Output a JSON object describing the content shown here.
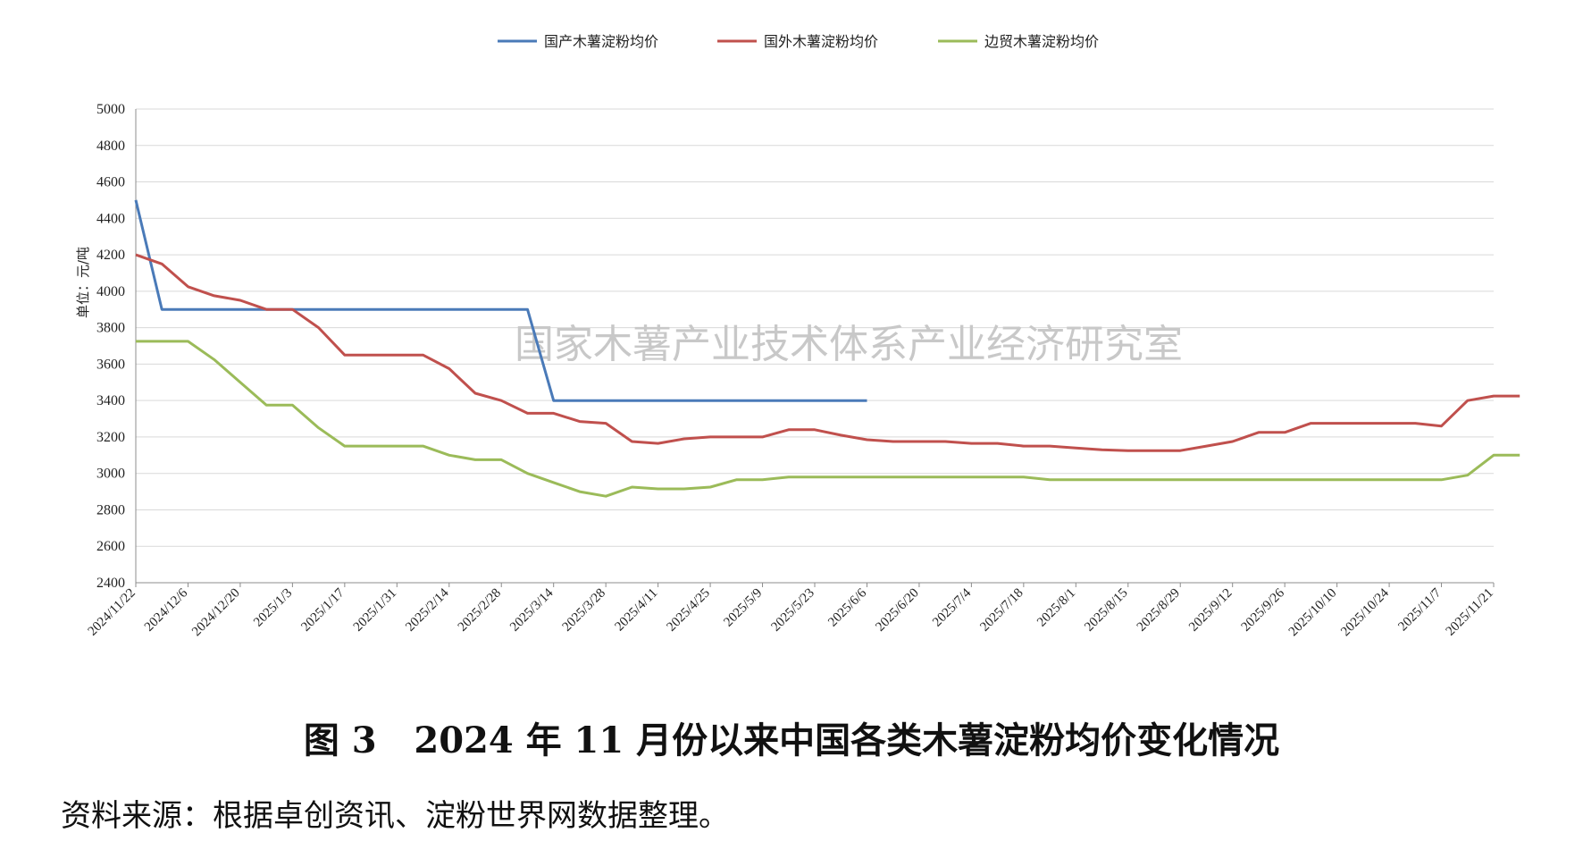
{
  "chart_data": {
    "type": "line",
    "ylabel": "单位：元/吨",
    "ylim": [
      2400,
      5000
    ],
    "yticks": [
      2400,
      2600,
      2800,
      3000,
      3200,
      3400,
      3600,
      3800,
      4000,
      4200,
      4400,
      4600,
      4800,
      5000
    ],
    "xtick_labels": [
      "2024/11/22",
      "2024/12/6",
      "2024/12/20",
      "2025/1/3",
      "2025/1/17",
      "2025/1/31",
      "2025/2/14",
      "2025/2/28",
      "2025/3/14",
      "2025/3/28",
      "2025/4/11",
      "2025/4/25",
      "2025/5/9",
      "2025/5/23",
      "2025/6/6",
      "2025/6/20",
      "2025/7/4",
      "2025/7/18",
      "2025/8/1",
      "2025/8/15",
      "2025/8/29",
      "2025/9/12",
      "2025/9/26",
      "2025/10/10",
      "2025/10/24",
      "2025/11/7",
      "2025/11/21"
    ],
    "grid": true,
    "legend_position": "top-center",
    "watermark": "国家木薯产业技术体系产业经济研究室",
    "series": [
      {
        "name": "国产木薯淀粉均价",
        "color": "#4a7ab8",
        "values": [
          4500,
          3900,
          3900,
          3900,
          3900,
          3900,
          3900,
          3900,
          3900,
          3900,
          3900,
          3900,
          3900,
          3900,
          3900,
          3900,
          3400,
          3400,
          3400,
          3400,
          3400,
          3400,
          3400,
          3400,
          3400,
          3400,
          3400,
          3400,
          3400
        ]
      },
      {
        "name": "国外木薯淀粉均价",
        "color": "#c0504d",
        "values": [
          4200,
          4150,
          4025,
          3975,
          3950,
          3900,
          3900,
          3800,
          3650,
          3650,
          3650,
          3650,
          3575,
          3440,
          3400,
          3330,
          3330,
          3285,
          3275,
          3175,
          3165,
          3190,
          3200,
          3200,
          3200,
          3240,
          3240,
          3210,
          3185,
          3175,
          3175,
          3175,
          3165,
          3165,
          3150,
          3150,
          3140,
          3130,
          3125,
          3125,
          3125,
          3150,
          3175,
          3225,
          3225,
          3275,
          3275,
          3275,
          3275,
          3275,
          3260,
          3400,
          3425,
          3425
        ]
      },
      {
        "name": "边贸木薯淀粉均价",
        "color": "#9bbb59",
        "values": [
          3725,
          3725,
          3725,
          3625,
          3500,
          3375,
          3375,
          3250,
          3150,
          3150,
          3150,
          3150,
          3100,
          3075,
          3075,
          3000,
          2950,
          2900,
          2875,
          2925,
          2915,
          2915,
          2925,
          2965,
          2965,
          2980,
          2980,
          2980,
          2980,
          2980,
          2980,
          2980,
          2980,
          2980,
          2980,
          2965,
          2965,
          2965,
          2965,
          2965,
          2965,
          2965,
          2965,
          2965,
          2965,
          2965,
          2965,
          2965,
          2965,
          2965,
          2965,
          2990,
          3100,
          3100
        ]
      }
    ]
  },
  "caption": "图 3   2024 年 11 月份以来中国各类木薯淀粉均价变化情况",
  "source": "资料来源：根据卓创资讯、淀粉世界网数据整理。"
}
